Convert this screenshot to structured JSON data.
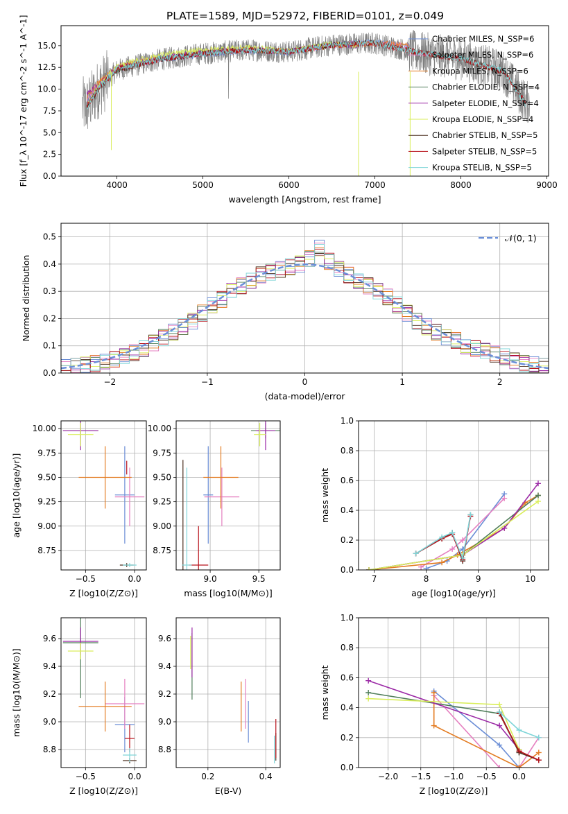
{
  "title": "PLATE=1589, MJD=52972, FIBERID=0101, z=0.049",
  "colors": {
    "Chabrier MILES": "#6b8ed6",
    "Salpeter MILES": "#e57fc0",
    "Kroupa MILES": "#e37b21",
    "Chabrier ELODIE": "#4f7d59",
    "Salpeter ELODIE": "#9b29a6",
    "Kroupa ELODIE": "#d9ee5a",
    "Chabrier STELIB": "#4a2e1e",
    "Salpeter STELIB": "#b8121b",
    "Kroupa STELIB": "#7fd5d8",
    "gauss": "#6a8fd8",
    "data": "#808080"
  },
  "chart_data": [
    {
      "type": "line",
      "xlabel": "wavelength [Angstrom, rest frame]",
      "ylabel": "Flux [f_λ 10^-17 erg cm^-2 s^-1 A^-1]",
      "xlim": [
        3350,
        9020
      ],
      "ylim": [
        0,
        17.3
      ],
      "xticks": [
        "4000",
        "5000",
        "6000",
        "7000",
        "8000",
        "9000"
      ],
      "yticks": [
        "0.0",
        "2.5",
        "5.0",
        "7.5",
        "10.0",
        "12.5",
        "15.0"
      ],
      "legend": "upper right",
      "series": [
        {
          "name": "Chabrier MILES, N_SSP=6",
          "x": [
            3650,
            3800,
            4000,
            4200,
            4500,
            5000,
            5500,
            6000,
            6500,
            7000,
            7400
          ],
          "y": [
            8.5,
            10.5,
            12.2,
            12.8,
            13.4,
            14.0,
            14.4,
            14.2,
            15.1,
            15.4,
            14.9
          ]
        },
        {
          "name": "Salpeter MILES, N_SSP=6",
          "x": [
            3650,
            3800,
            4000,
            4200,
            4500,
            5000,
            5500,
            6000,
            6500,
            7000,
            7400
          ],
          "y": [
            8.8,
            10.6,
            12.3,
            12.9,
            13.5,
            14.1,
            14.5,
            14.3,
            15.1,
            15.3,
            14.9
          ]
        },
        {
          "name": "Kroupa MILES, N_SSP=6",
          "x": [
            3650,
            3800,
            4000,
            4200,
            4500,
            5000,
            5500,
            6000,
            6500,
            7000,
            7400
          ],
          "y": [
            9.2,
            10.9,
            12.5,
            13.0,
            13.6,
            14.2,
            14.5,
            14.3,
            15.0,
            15.3,
            15.0
          ]
        },
        {
          "name": "Chabrier ELODIE, N_SSP=4",
          "x": [
            3650,
            3800,
            4000,
            4200,
            4500,
            5000,
            5500,
            6000,
            6500,
            6800
          ],
          "y": [
            8.0,
            10.3,
            12.3,
            12.9,
            13.5,
            14.2,
            14.6,
            14.3,
            15.2,
            15.0
          ]
        },
        {
          "name": "Salpeter ELODIE, N_SSP=4",
          "x": [
            3650,
            3800,
            4000,
            4200,
            4500,
            5000,
            5500,
            6000,
            6500,
            6800
          ],
          "y": [
            9.5,
            10.6,
            12.5,
            13.0,
            13.6,
            14.2,
            14.6,
            14.3,
            15.1,
            15.0
          ]
        },
        {
          "name": "Kroupa ELODIE, N_SSP=4",
          "x": [
            3650,
            3800,
            4000,
            4200,
            4500,
            5000,
            5500,
            6000,
            6500,
            6800
          ],
          "y": [
            8.2,
            10.5,
            12.6,
            13.2,
            13.9,
            14.5,
            14.8,
            14.4,
            15.2,
            15.0
          ]
        },
        {
          "name": "Chabrier STELIB, N_SSP=5",
          "x": [
            3650,
            3800,
            4000,
            4500,
            5000,
            5500,
            6000,
            6500,
            7000,
            7500,
            8000,
            8500,
            8750
          ],
          "y": [
            8.0,
            10.2,
            12.2,
            13.4,
            14.1,
            14.5,
            14.3,
            15.1,
            15.3,
            14.2,
            13.5,
            12.0,
            8.5
          ]
        },
        {
          "name": "Salpeter STELIB, N_SSP=5",
          "x": [
            3650,
            3800,
            4000,
            4500,
            5000,
            5500,
            6000,
            6500,
            7000,
            7500,
            8000,
            8500,
            8750
          ],
          "y": [
            8.1,
            10.3,
            12.3,
            13.4,
            14.1,
            14.5,
            14.3,
            15.1,
            15.3,
            14.2,
            13.5,
            12.0,
            8.5
          ]
        },
        {
          "name": "Kroupa STELIB, N_SSP=5",
          "x": [
            3650,
            3800,
            4000,
            4500,
            5000,
            5500,
            6000,
            6500,
            7000,
            7500,
            8000,
            8500,
            8750
          ],
          "y": [
            7.8,
            10.3,
            12.4,
            13.5,
            14.1,
            14.5,
            14.3,
            15.1,
            15.3,
            14.2,
            13.5,
            12.1,
            8.2
          ]
        }
      ]
    },
    {
      "type": "line",
      "xlabel": "(data-model)/error",
      "ylabel": "Normed distribution",
      "xlim": [
        -2.5,
        2.5
      ],
      "ylim": [
        0,
        0.55
      ],
      "xticks": [
        "−2",
        "−1",
        "0",
        "1",
        "2"
      ],
      "yticks": [
        "0.0",
        "0.1",
        "0.2",
        "0.3",
        "0.4",
        "0.5"
      ],
      "legend": "upper right",
      "gaussian_label": "𝒩(0, 1)",
      "bin_edges": [
        -2.5,
        -2.4,
        -2.3,
        -2.2,
        -2.1,
        -2.0,
        -1.9,
        -1.8,
        -1.7,
        -1.6,
        -1.5,
        -1.4,
        -1.3,
        -1.2,
        -1.1,
        -1.0,
        -0.9,
        -0.8,
        -0.7,
        -0.6,
        -0.5,
        -0.4,
        -0.3,
        -0.2,
        -0.1,
        0.0,
        0.1,
        0.2,
        0.3,
        0.4,
        0.5,
        0.6,
        0.7,
        0.8,
        0.9,
        1.0,
        1.1,
        1.2,
        1.3,
        1.4,
        1.5,
        1.6,
        1.7,
        1.8,
        1.9,
        2.0,
        2.1,
        2.2,
        2.3,
        2.4,
        2.5
      ],
      "hist_base": [
        0.02,
        0.025,
        0.03,
        0.035,
        0.045,
        0.05,
        0.06,
        0.075,
        0.09,
        0.11,
        0.13,
        0.15,
        0.17,
        0.19,
        0.22,
        0.25,
        0.27,
        0.3,
        0.32,
        0.34,
        0.36,
        0.37,
        0.38,
        0.39,
        0.4,
        0.42,
        0.46,
        0.41,
        0.38,
        0.36,
        0.34,
        0.32,
        0.3,
        0.28,
        0.25,
        0.22,
        0.19,
        0.17,
        0.15,
        0.13,
        0.12,
        0.1,
        0.09,
        0.08,
        0.07,
        0.06,
        0.045,
        0.035,
        0.03,
        0.025
      ]
    },
    {
      "type": "scatter",
      "xlabel": "Z [log10(Z/Z⊙)]",
      "ylabel": "age [log10(age/yr)]",
      "xlim": [
        -0.75,
        0.12
      ],
      "ylim": [
        8.55,
        10.08
      ],
      "xticks": [
        "−0.5",
        "0.0"
      ],
      "yticks": [
        "8.75",
        "9.00",
        "9.25",
        "9.50",
        "9.75",
        "10.00"
      ],
      "points": [
        {
          "name": "Chabrier MILES",
          "x": -0.1,
          "y": 9.32,
          "xerr": 0.1,
          "yerr": 0.5
        },
        {
          "name": "Salpeter MILES",
          "x": -0.05,
          "y": 9.3,
          "xerr": 0.15,
          "yerr": 0.3
        },
        {
          "name": "Kroupa MILES",
          "x": -0.3,
          "y": 9.5,
          "xerr": 0.27,
          "yerr": 0.32
        },
        {
          "name": "Chabrier ELODIE",
          "x": -0.55,
          "y": 9.98,
          "xerr": 0.18,
          "yerr": 0.08
        },
        {
          "name": "Salpeter ELODIE",
          "x": -0.55,
          "y": 9.98,
          "xerr": 0.18,
          "yerr": 0.2
        },
        {
          "name": "Kroupa ELODIE",
          "x": -0.55,
          "y": 9.94,
          "xerr": 0.13,
          "yerr": 0.12
        },
        {
          "name": "Chabrier STELIB",
          "x": -0.08,
          "y": 8.6,
          "xerr": 0.07,
          "yerr": 0.02
        },
        {
          "name": "Salpeter STELIB",
          "x": -0.08,
          "y": 9.6,
          "xerr": 0.0,
          "yerr": 0.07
        },
        {
          "name": "Kroupa STELIB",
          "x": -0.05,
          "y": 8.6,
          "xerr": 0.07,
          "yerr": 0.02
        }
      ]
    },
    {
      "type": "scatter",
      "xlabel": "mass [log10(M/M⊙)]",
      "ylabel": "",
      "xlim": [
        8.65,
        9.72
      ],
      "ylim": [
        8.55,
        10.08
      ],
      "xticks": [
        "9.0",
        "9.5"
      ],
      "yticks": [
        "8.75",
        "9.00",
        "9.25",
        "9.50",
        "9.75",
        "10.00"
      ],
      "points": [
        {
          "name": "Chabrier MILES",
          "x": 8.98,
          "y": 9.32,
          "xerr": 0.05,
          "yerr": 0.5
        },
        {
          "name": "Salpeter MILES",
          "x": 9.12,
          "y": 9.3,
          "xerr": 0.18,
          "yerr": 0.3
        },
        {
          "name": "Kroupa MILES",
          "x": 9.11,
          "y": 9.5,
          "xerr": 0.18,
          "yerr": 0.32
        },
        {
          "name": "Chabrier ELODIE",
          "x": 9.57,
          "y": 9.98,
          "xerr": 0.15,
          "yerr": 0.08
        },
        {
          "name": "Salpeter ELODIE",
          "x": 9.57,
          "y": 9.98,
          "xerr": 0.1,
          "yerr": 0.2
        },
        {
          "name": "Kroupa ELODIE",
          "x": 9.51,
          "y": 9.94,
          "xerr": 0.06,
          "yerr": 0.12
        },
        {
          "name": "Chabrier STELIB",
          "x": 8.72,
          "y": 9.08,
          "xerr": 0.0,
          "yerr": 0.6
        },
        {
          "name": "Salpeter STELIB",
          "x": 8.88,
          "y": 8.6,
          "xerr": 0.1,
          "yerr": 0.4
        },
        {
          "name": "Kroupa STELIB",
          "x": 8.76,
          "y": 8.6,
          "xerr": 0.05,
          "yerr": 1.0
        }
      ]
    },
    {
      "type": "line",
      "xlabel": "age [log10(age/yr)]",
      "ylabel": "mass weight",
      "xlim": [
        6.7,
        10.35
      ],
      "ylim": [
        0,
        1.0
      ],
      "xticks": [
        "7",
        "8",
        "9",
        "10"
      ],
      "yticks": [
        "0.0",
        "0.2",
        "0.4",
        "0.6",
        "0.8",
        "1.0"
      ],
      "series": [
        {
          "name": "Chabrier MILES",
          "x": [
            8.0,
            8.4,
            8.7,
            9.5
          ],
          "y": [
            0.01,
            0.06,
            0.14,
            0.51
          ]
        },
        {
          "name": "Salpeter MILES",
          "x": [
            7.9,
            8.5,
            8.7,
            9.5
          ],
          "y": [
            0.02,
            0.14,
            0.2,
            0.48
          ]
        },
        {
          "name": "Kroupa MILES",
          "x": [
            6.9,
            8.3,
            8.6,
            9.5,
            9.9,
            10.15
          ],
          "y": [
            0.0,
            0.05,
            0.1,
            0.28,
            0.45,
            0.5
          ]
        },
        {
          "name": "Chabrier ELODIE",
          "x": [
            6.9,
            8.7,
            10.15
          ],
          "y": [
            0.0,
            0.1,
            0.5
          ]
        },
        {
          "name": "Salpeter ELODIE",
          "x": [
            6.9,
            8.7,
            9.5,
            10.15
          ],
          "y": [
            0.0,
            0.1,
            0.28,
            0.58
          ]
        },
        {
          "name": "Kroupa ELODIE",
          "x": [
            6.9,
            8.7,
            10.15
          ],
          "y": [
            0.0,
            0.1,
            0.46
          ]
        },
        {
          "name": "Chabrier STELIB",
          "x": [
            7.8,
            8.3,
            8.5,
            8.7,
            8.85
          ],
          "y": [
            0.11,
            0.21,
            0.25,
            0.06,
            0.37
          ]
        },
        {
          "name": "Salpeter STELIB",
          "x": [
            7.8,
            8.3,
            8.5,
            8.7,
            8.85
          ],
          "y": [
            0.11,
            0.21,
            0.24,
            0.07,
            0.36
          ]
        },
        {
          "name": "Kroupa STELIB",
          "x": [
            7.8,
            8.3,
            8.5,
            8.7,
            8.85
          ],
          "y": [
            0.11,
            0.22,
            0.25,
            0.08,
            0.37
          ]
        }
      ]
    },
    {
      "type": "scatter",
      "xlabel": "Z [log10(Z/Z⊙)]",
      "ylabel": "mass [log10(M/M⊙)]",
      "xlim": [
        -0.75,
        0.12
      ],
      "ylim": [
        8.67,
        9.75
      ],
      "xticks": [
        "−0.5",
        "0.0"
      ],
      "yticks": [
        "8.8",
        "9.0",
        "9.2",
        "9.4",
        "9.6"
      ],
      "points": [
        {
          "name": "Chabrier MILES",
          "x": -0.1,
          "y": 8.98,
          "xerr": 0.1,
          "yerr": 0.2
        },
        {
          "name": "Salpeter MILES",
          "x": -0.1,
          "y": 9.13,
          "xerr": 0.2,
          "yerr": 0.18
        },
        {
          "name": "Kroupa MILES",
          "x": -0.3,
          "y": 9.11,
          "xerr": 0.27,
          "yerr": 0.18
        },
        {
          "name": "Chabrier ELODIE",
          "x": -0.55,
          "y": 9.57,
          "xerr": 0.18,
          "yerr": 0.4
        },
        {
          "name": "Salpeter ELODIE",
          "x": -0.55,
          "y": 9.58,
          "xerr": 0.18,
          "yerr": 0.1
        },
        {
          "name": "Kroupa ELODIE",
          "x": -0.55,
          "y": 9.51,
          "xerr": 0.13,
          "yerr": 0.06
        },
        {
          "name": "Chabrier STELIB",
          "x": -0.05,
          "y": 8.72,
          "xerr": 0.07,
          "yerr": 0.02
        },
        {
          "name": "Salpeter STELIB",
          "x": -0.05,
          "y": 8.88,
          "xerr": 0.05,
          "yerr": 0.1
        },
        {
          "name": "Kroupa STELIB",
          "x": -0.05,
          "y": 8.76,
          "xerr": 0.07,
          "yerr": 0.05
        }
      ]
    },
    {
      "type": "scatter",
      "xlabel": "E(B-V)",
      "ylabel": "",
      "xlim": [
        0.09,
        0.45
      ],
      "ylim": [
        8.67,
        9.75
      ],
      "xticks": [
        "0.2",
        "0.4"
      ],
      "yticks": [
        "8.8",
        "9.0",
        "9.2",
        "9.4",
        "9.6"
      ],
      "points": [
        {
          "name": "Chabrier MILES",
          "x": 0.34,
          "y": 9.0,
          "xerr": 0.0,
          "yerr": 0.15
        },
        {
          "name": "Salpeter MILES",
          "x": 0.33,
          "y": 9.13,
          "xerr": 0.0,
          "yerr": 0.18
        },
        {
          "name": "Kroupa MILES",
          "x": 0.315,
          "y": 9.11,
          "xerr": 0.0,
          "yerr": 0.18
        },
        {
          "name": "Chabrier ELODIE",
          "x": 0.145,
          "y": 9.4,
          "xerr": 0.0,
          "yerr": 0.24
        },
        {
          "name": "Salpeter ELODIE",
          "x": 0.145,
          "y": 9.5,
          "xerr": 0.0,
          "yerr": 0.18
        },
        {
          "name": "Kroupa ELODIE",
          "x": 0.14,
          "y": 9.5,
          "xerr": 0.0,
          "yerr": 0.12
        },
        {
          "name": "Chabrier STELIB",
          "x": 0.435,
          "y": 8.82,
          "xerr": 0.0,
          "yerr": 0.1
        },
        {
          "name": "Salpeter STELIB",
          "x": 0.435,
          "y": 8.88,
          "xerr": 0.0,
          "yerr": 0.14
        },
        {
          "name": "Kroupa STELIB",
          "x": 0.43,
          "y": 8.8,
          "xerr": 0.0,
          "yerr": 0.1
        }
      ]
    },
    {
      "type": "line",
      "xlabel": "Z [log10(Z/Z⊙)]",
      "ylabel": "mass weight",
      "xlim": [
        -2.45,
        0.45
      ],
      "ylim": [
        0,
        1.0
      ],
      "xticks": [
        "−2.0",
        "−1.5",
        "−1.0",
        "−0.5",
        "0.0"
      ],
      "yticks": [
        "0.0",
        "0.2",
        "0.4",
        "0.6",
        "0.8",
        "1.0"
      ],
      "series": [
        {
          "name": "Chabrier MILES",
          "x": [
            -1.3,
            -0.3,
            0.0
          ],
          "y": [
            0.51,
            0.15,
            0.0
          ]
        },
        {
          "name": "Salpeter MILES",
          "x": [
            -1.3,
            -0.3,
            0.0,
            0.3
          ],
          "y": [
            0.48,
            0.0,
            0.0,
            0.2
          ]
        },
        {
          "name": "Kroupa MILES",
          "x": [
            -1.3,
            -1.3,
            0.0,
            0.3
          ],
          "y": [
            0.5,
            0.28,
            0.0,
            0.1
          ]
        },
        {
          "name": "Chabrier ELODIE",
          "x": [
            -2.3,
            -0.3,
            0.0
          ],
          "y": [
            0.5,
            0.36,
            0.1
          ]
        },
        {
          "name": "Salpeter ELODIE",
          "x": [
            -2.3,
            -0.3,
            0.0
          ],
          "y": [
            0.58,
            0.28,
            0.12
          ]
        },
        {
          "name": "Kroupa ELODIE",
          "x": [
            -2.3,
            -0.3,
            0.0
          ],
          "y": [
            0.46,
            0.42,
            0.12
          ]
        },
        {
          "name": "Chabrier STELIB",
          "x": [
            -0.3,
            0.0,
            0.3
          ],
          "y": [
            0.37,
            0.1,
            0.05
          ]
        },
        {
          "name": "Salpeter STELIB",
          "x": [
            -0.3,
            0.0,
            0.3
          ],
          "y": [
            0.36,
            0.11,
            0.05
          ]
        },
        {
          "name": "Kroupa STELIB",
          "x": [
            -0.3,
            0.0,
            0.3
          ],
          "y": [
            0.37,
            0.25,
            0.2
          ]
        }
      ]
    }
  ]
}
